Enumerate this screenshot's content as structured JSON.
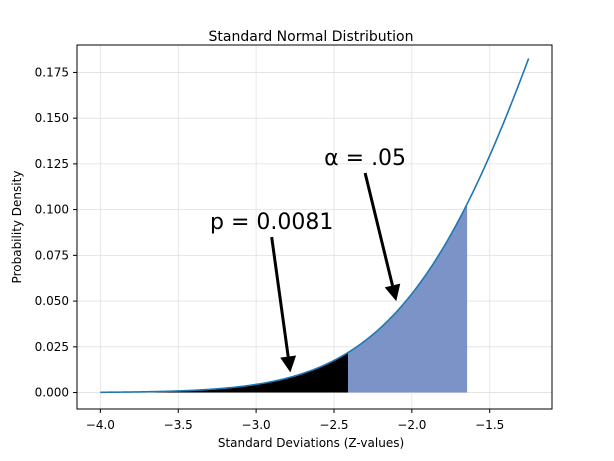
{
  "chart_data": {
    "type": "area",
    "title": "Standard Normal Distribution",
    "xlabel": "Standard Deviations (Z-values)",
    "ylabel": "Probability Density",
    "xlim": [
      -4.15,
      -1.1
    ],
    "ylim": [
      -0.009,
      0.19
    ],
    "x_ticks": [
      -4.0,
      -3.5,
      -3.0,
      -2.5,
      -2.0,
      -1.5
    ],
    "x_tick_labels": [
      "−4.0",
      "−3.5",
      "−3.0",
      "−2.5",
      "−2.0",
      "−1.5"
    ],
    "y_ticks": [
      0.0,
      0.025,
      0.05,
      0.075,
      0.1,
      0.125,
      0.15,
      0.175
    ],
    "y_tick_labels": [
      "0.000",
      "0.025",
      "0.050",
      "0.075",
      "0.100",
      "0.125",
      "0.150",
      "0.175"
    ],
    "grid": true,
    "curve": {
      "x_start": -4.0,
      "x_end": -1.25,
      "color": "#1f77b4",
      "function": "standard normal pdf"
    },
    "shaded_regions": [
      {
        "label": "α = .05",
        "x_from": -4.0,
        "x_to": -1.645,
        "color": "#7b93c6"
      },
      {
        "label": "p = 0.0081",
        "x_from": -4.0,
        "x_to": -2.41,
        "color": "#000000"
      }
    ],
    "annotations": [
      {
        "text": "α = .05",
        "text_x": -2.3,
        "text_y": 0.12,
        "arrow_to_x": -2.1,
        "arrow_to_y": 0.05
      },
      {
        "text": "p = 0.0081",
        "text_x": -2.9,
        "text_y": 0.085,
        "arrow_to_x": -2.78,
        "arrow_to_y": 0.011
      }
    ]
  }
}
